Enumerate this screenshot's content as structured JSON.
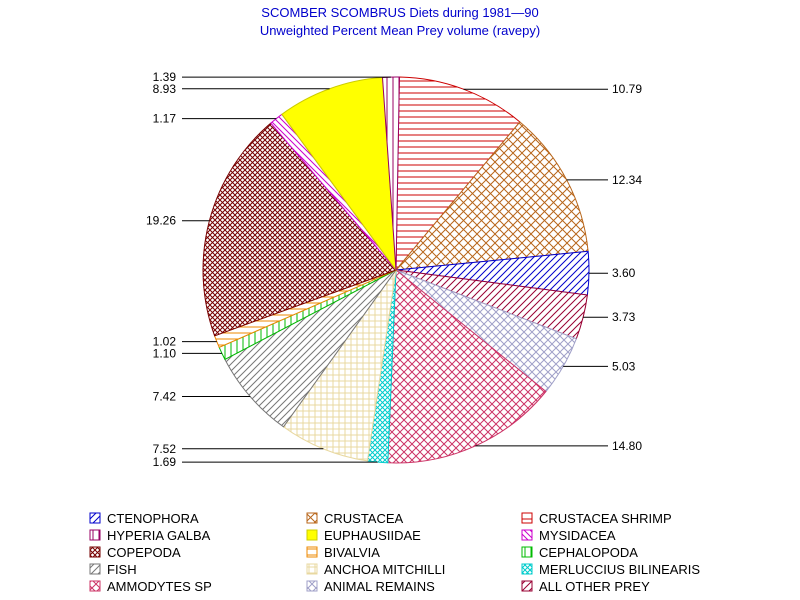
{
  "chart_data": {
    "type": "pie",
    "title": "SCOMBER SCOMBRUS Diets during 1981—90",
    "subtitle": "Unweighted Percent Mean Prey volume (ravepy)",
    "slices": [
      {
        "label": "CRUSTACEA SHRIMP",
        "value": 10.79,
        "value_label": "10.79",
        "color": "#cc0000",
        "pattern": "horizontal"
      },
      {
        "label": "CRUSTACEA",
        "value": 12.34,
        "value_label": "12.34",
        "color": "#b8661a",
        "pattern": "crosshatch"
      },
      {
        "label": "CTENOPHORA",
        "value": 3.6,
        "value_label": "3.60",
        "color": "#0000cc",
        "pattern": "diagonal-up"
      },
      {
        "label": "ALL OTHER PREY",
        "value": 3.73,
        "value_label": "3.73",
        "color": "#990033",
        "pattern": "diagonal-up"
      },
      {
        "label": "ANIMAL REMAINS",
        "value": 5.03,
        "value_label": "5.03",
        "color": "#a0a0c8",
        "pattern": "diagonal-cross"
      },
      {
        "label": "AMMODYTES SP",
        "value": 14.8,
        "value_label": "14.80",
        "color": "#cc3366",
        "pattern": "diagonal-cross"
      },
      {
        "label": "MERLUCCIUS BILINEARIS",
        "value": 1.69,
        "value_label": "1.69",
        "color": "#00cccc",
        "pattern": "diagonal-cross-dense"
      },
      {
        "label": "ANCHOA MITCHILLI",
        "value": 7.52,
        "value_label": "7.52",
        "color": "#e8d8a0",
        "pattern": "grid"
      },
      {
        "label": "FISH",
        "value": 7.42,
        "value_label": "7.42",
        "color": "#777777",
        "pattern": "diagonal-up"
      },
      {
        "label": "CEPHALOPODA",
        "value": 1.1,
        "value_label": "1.10",
        "color": "#00bb00",
        "pattern": "vertical"
      },
      {
        "label": "BIVALVIA",
        "value": 1.02,
        "value_label": "1.02",
        "color": "#ee8800",
        "pattern": "horizontal"
      },
      {
        "label": "COPEPODA",
        "value": 19.26,
        "value_label": "19.26",
        "color": "#770000",
        "pattern": "crosshatch-dense"
      },
      {
        "label": "MYSIDACEA",
        "value": 1.17,
        "value_label": "1.17",
        "color": "#cc00cc",
        "pattern": "diagonal-down"
      },
      {
        "label": "EUPHAUSIIDAE",
        "value": 8.93,
        "value_label": "8.93",
        "color": "#ffff00",
        "pattern": "solid"
      },
      {
        "label": "HYPERIA GALBA",
        "value": 1.39,
        "value_label": "1.39",
        "color": "#990066",
        "pattern": "vertical"
      }
    ],
    "legend": [
      {
        "label": "CTENOPHORA",
        "color": "#0000cc",
        "pattern": "diagonal-up"
      },
      {
        "label": "CRUSTACEA",
        "color": "#b8661a",
        "pattern": "crosshatch"
      },
      {
        "label": "CRUSTACEA SHRIMP",
        "color": "#cc0000",
        "pattern": "horizontal"
      },
      {
        "label": "HYPERIA GALBA",
        "color": "#990066",
        "pattern": "vertical"
      },
      {
        "label": "EUPHAUSIIDAE",
        "color": "#ffff00",
        "pattern": "solid"
      },
      {
        "label": "MYSIDACEA",
        "color": "#cc00cc",
        "pattern": "diagonal-down"
      },
      {
        "label": "COPEPODA",
        "color": "#770000",
        "pattern": "crosshatch-dense"
      },
      {
        "label": "BIVALVIA",
        "color": "#ee8800",
        "pattern": "horizontal"
      },
      {
        "label": "CEPHALOPODA",
        "color": "#00bb00",
        "pattern": "vertical"
      },
      {
        "label": "FISH",
        "color": "#777777",
        "pattern": "diagonal-up"
      },
      {
        "label": "ANCHOA MITCHILLI",
        "color": "#e8d8a0",
        "pattern": "grid"
      },
      {
        "label": "MERLUCCIUS BILINEARIS",
        "color": "#00cccc",
        "pattern": "diagonal-cross-dense"
      },
      {
        "label": "AMMODYTES SP",
        "color": "#cc3366",
        "pattern": "diagonal-cross"
      },
      {
        "label": "ANIMAL REMAINS",
        "color": "#a0a0c8",
        "pattern": "diagonal-cross"
      },
      {
        "label": "ALL OTHER PREY",
        "color": "#990033",
        "pattern": "diagonal-up"
      }
    ],
    "legend_placement": "bottom"
  }
}
